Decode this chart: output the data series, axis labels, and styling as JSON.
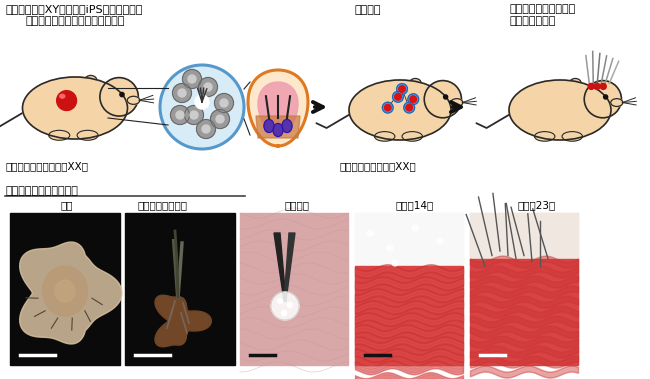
{
  "title_top_left_line1": "マウス（雄、XY）由来のiPS細胞を用いた",
  "title_top_left_line2": "生体内培養による全層皮膚器官系",
  "title_top_mid": "皮下移植",
  "title_top_right_line1": "同所性移植による再生",
  "title_top_right_line2": "毛包器官の機能",
  "label_bottom_left": "免疫不全マウス（雌、XX）",
  "label_bottom_mid": "ヌードマウス（雌、XX）",
  "section2_title": "再生毛包器官を含む組織",
  "sub_label1": "全体",
  "sub_label2": "再生毛包ユニット",
  "sub_label3": "皮下移植",
  "sub_label4": "移植後14日",
  "sub_label5": "移植後23日",
  "bg_color": "#ffffff",
  "mouse_body_color": "#f5d5a8",
  "mouse_outline_color": "#2a2a2a",
  "font_size_title": 8.0,
  "font_size_label": 7.5,
  "font_size_sublabel": 7.5
}
